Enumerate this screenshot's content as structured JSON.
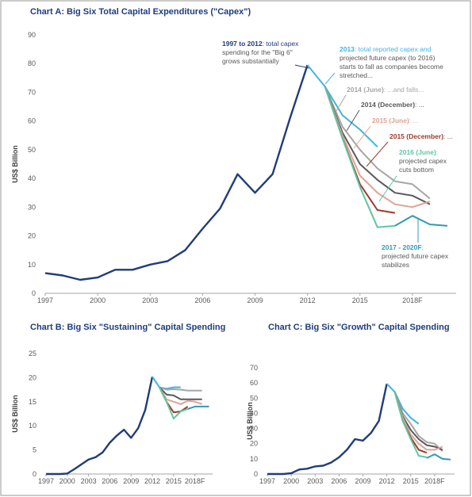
{
  "chart_data": [
    {
      "type": "line",
      "title": "Chart A: Big Six Total Capital Expenditures (\"Capex\")",
      "y_label": "US$ Billion",
      "xlim": [
        1997,
        2020.5
      ],
      "xticks": [
        1997,
        2000,
        2003,
        2006,
        2009,
        2012,
        2015,
        {
          "value": 2018,
          "label": "2018F"
        }
      ],
      "ylim": [
        0,
        90
      ],
      "yticks": [
        0,
        10,
        20,
        30,
        40,
        50,
        60,
        70,
        80,
        90
      ],
      "series": [
        {
          "name": "1997 to 2012",
          "note": [
            ": total capex",
            "spending for the \"Big 6\"",
            "grows substantially"
          ],
          "color": "#1f3d7a",
          "x": [
            1997,
            1998,
            1999,
            2000,
            2001,
            2002,
            2003,
            2004,
            2005,
            2006,
            2007,
            2008,
            2009,
            2010,
            2011,
            2012
          ],
          "values": [
            7,
            6.2,
            4.7,
            5.5,
            8.2,
            8.2,
            10,
            11.2,
            15,
            22.5,
            29.5,
            41.5,
            35,
            41.5,
            61,
            79.5
          ]
        },
        {
          "name": "2013",
          "note": [
            ": total reported capex and",
            "projected future capex (to 2016)",
            "starts to fall as companies become",
            "stretched..."
          ],
          "color": "#3fb4e5",
          "x": [
            2012,
            2013,
            2014,
            2015,
            2016
          ],
          "values": [
            79.5,
            72,
            62,
            57,
            51
          ]
        },
        {
          "name": "2014 (June)",
          "note": [
            ": ...and falls..."
          ],
          "color": "#a6a6a6",
          "x": [
            2013,
            2014,
            2015,
            2016,
            2017,
            2018,
            2019
          ],
          "values": [
            72,
            58,
            50,
            43.5,
            39,
            38,
            33
          ]
        },
        {
          "name": "2014 (December)",
          "note": [
            ": ..."
          ],
          "color": "#595959",
          "x": [
            2013,
            2014,
            2015,
            2016,
            2017,
            2018,
            2019
          ],
          "values": [
            72,
            56,
            45,
            39.5,
            35,
            34,
            31
          ]
        },
        {
          "name": "2015 (June)",
          "note": [
            ": ..."
          ],
          "color": "#e0a294",
          "x": [
            2013,
            2014,
            2015,
            2016,
            2017,
            2018,
            2019
          ],
          "values": [
            72,
            55,
            41,
            35,
            31,
            30,
            32
          ]
        },
        {
          "name": "2015 (December)",
          "note": [
            ": ..."
          ],
          "color": "#9e3a2b",
          "x": [
            2013,
            2014,
            2015,
            2016,
            2017
          ],
          "values": [
            72,
            54,
            38,
            29,
            28
          ]
        },
        {
          "name": "2016 (June)",
          "note": [
            ":",
            "projected capex",
            "cuts bottom"
          ],
          "color": "#5ec6a0",
          "x": [
            2013,
            2014,
            2015,
            2016,
            2017
          ],
          "values": [
            72,
            54,
            37,
            23,
            23.5
          ]
        },
        {
          "name": "2017 - 2020F",
          "note": [
            ":",
            "projected future capex",
            "stabilizes"
          ],
          "color": "#3399b3",
          "x": [
            2017,
            2018,
            2019,
            2020
          ],
          "values": [
            23.5,
            27,
            24,
            23.5
          ]
        }
      ]
    },
    {
      "type": "line",
      "title": "Chart B: Big Six \"Sustaining\" Capital Spending",
      "y_label": "US$ Billion",
      "xlim": [
        1997,
        2020.5
      ],
      "xticks": [
        1997,
        2000,
        2003,
        2006,
        2009,
        2012,
        2015,
        {
          "value": 2018,
          "label": "2018F"
        }
      ],
      "ylim": [
        0,
        25
      ],
      "yticks": [
        0,
        5,
        10,
        15,
        20,
        25
      ],
      "series": [
        {
          "color": "#1f3d7a",
          "x": [
            1997,
            1998,
            1999,
            2000,
            2001,
            2002,
            2003,
            2004,
            2005,
            2006,
            2007,
            2008,
            2009,
            2010,
            2011,
            2012
          ],
          "values": [
            0,
            0,
            0,
            0.1,
            1,
            2,
            3,
            3.5,
            4.5,
            6.5,
            8,
            9.2,
            7.5,
            9.5,
            13.3,
            20.2
          ]
        },
        {
          "color": "#3fb4e5",
          "x": [
            2012,
            2013,
            2014,
            2015,
            2016
          ],
          "values": [
            20.2,
            18,
            17.7,
            18,
            18
          ]
        },
        {
          "color": "#a6a6a6",
          "x": [
            2013,
            2014,
            2015,
            2016,
            2017,
            2018,
            2019
          ],
          "values": [
            18,
            17.5,
            17.6,
            17.5,
            17.3,
            17.3,
            17.3
          ]
        },
        {
          "color": "#595959",
          "x": [
            2013,
            2014,
            2015,
            2016,
            2017,
            2018,
            2019
          ],
          "values": [
            18,
            16.5,
            16.3,
            15.5,
            15.5,
            15.5,
            15.5
          ]
        },
        {
          "color": "#e0a294",
          "x": [
            2013,
            2014,
            2015,
            2016,
            2017,
            2018,
            2019
          ],
          "values": [
            18,
            15.5,
            15,
            14.5,
            15.2,
            15,
            14.5
          ]
        },
        {
          "color": "#9e3a2b",
          "x": [
            2013,
            2014,
            2015,
            2016,
            2017
          ],
          "values": [
            18,
            15,
            12.8,
            13,
            14
          ]
        },
        {
          "color": "#5ec6a0",
          "x": [
            2013,
            2014,
            2015,
            2016,
            2017
          ],
          "values": [
            18,
            15,
            11.5,
            13,
            13.5
          ]
        },
        {
          "color": "#3399b3",
          "x": [
            2017,
            2018,
            2019,
            2020
          ],
          "values": [
            13.5,
            14,
            14,
            14
          ]
        }
      ]
    },
    {
      "type": "line",
      "title": "Chart C: Big Six \"Growth\" Capital Spending",
      "y_label": "US$ Billion",
      "xlim": [
        1997,
        2020.5
      ],
      "xticks": [
        1997,
        2000,
        2003,
        2006,
        2009,
        2012,
        2015,
        {
          "value": 2018,
          "label": "2018F"
        }
      ],
      "ylim": [
        0,
        70
      ],
      "yticks": [
        0,
        10,
        20,
        30,
        40,
        50,
        60,
        70
      ],
      "series": [
        {
          "color": "#1f3d7a",
          "x": [
            1997,
            1998,
            1999,
            2000,
            2001,
            2002,
            2003,
            2004,
            2005,
            2006,
            2007,
            2008,
            2009,
            2010,
            2011,
            2012
          ],
          "values": [
            0,
            0,
            0,
            0.5,
            3,
            3.5,
            5,
            5.5,
            7.5,
            11,
            16,
            23,
            22,
            27,
            35,
            59.5
          ]
        },
        {
          "color": "#3fb4e5",
          "x": [
            2012,
            2013,
            2014,
            2015,
            2016
          ],
          "values": [
            59.5,
            54,
            43,
            37,
            33
          ]
        },
        {
          "color": "#a6a6a6",
          "x": [
            2013,
            2014,
            2015,
            2016,
            2017,
            2018,
            2019
          ],
          "values": [
            54,
            40,
            33,
            25,
            21,
            20,
            15
          ]
        },
        {
          "color": "#595959",
          "x": [
            2013,
            2014,
            2015,
            2016,
            2017,
            2018,
            2019
          ],
          "values": [
            54,
            38,
            29,
            23,
            19,
            18,
            16
          ]
        },
        {
          "color": "#e0a294",
          "x": [
            2013,
            2014,
            2015,
            2016,
            2017,
            2018,
            2019
          ],
          "values": [
            54,
            37,
            26,
            20,
            16,
            16,
            18
          ]
        },
        {
          "color": "#9e3a2b",
          "x": [
            2013,
            2014,
            2015,
            2016,
            2017
          ],
          "values": [
            54,
            35,
            24,
            16,
            14
          ]
        },
        {
          "color": "#5ec6a0",
          "x": [
            2013,
            2014,
            2015,
            2016,
            2017
          ],
          "values": [
            54,
            35,
            23,
            12,
            11
          ]
        },
        {
          "color": "#3399b3",
          "x": [
            2017,
            2018,
            2019,
            2020
          ],
          "values": [
            10.5,
            13,
            10,
            9.5
          ]
        }
      ]
    }
  ]
}
